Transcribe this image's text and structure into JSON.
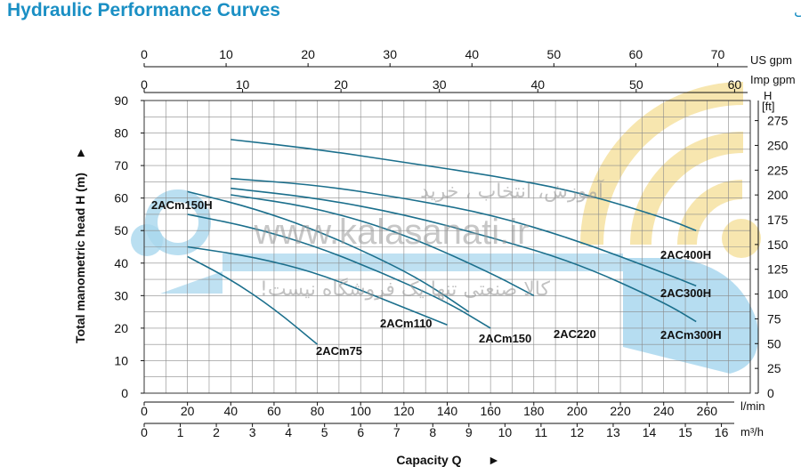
{
  "header": {
    "title_en": "Hydraulic Performance Curves",
    "title_fa": "منحنی عملکرد هیدرولیکی"
  },
  "watermark": {
    "line1": "آموزش، انتخاب ، خرید",
    "url": "www.kalasanati.ir",
    "line3": "کالا صنعتی تنها یک فروشگاه نیست!"
  },
  "colors": {
    "title": "#1a8fc4",
    "curve": "#1b6f8c",
    "watermark_blue": "#a9d7ee",
    "watermark_yellow": "#f6e3a6"
  },
  "chart_data": {
    "type": "line",
    "xlabel": "Capacity Q",
    "ylabel": "Total manometric head H (m)",
    "x_unit": "l/min",
    "xlim": [
      0,
      280
    ],
    "ylim": [
      0,
      90
    ],
    "grid": true,
    "x_ticks": [
      0,
      20,
      40,
      60,
      80,
      100,
      120,
      140,
      160,
      180,
      200,
      220,
      240,
      260
    ],
    "y_ticks": [
      0,
      10,
      20,
      30,
      40,
      50,
      60,
      70,
      80,
      90
    ],
    "secondary_axes": {
      "m3h": {
        "unit": "m³/h",
        "ticks": [
          0,
          1,
          2,
          3,
          4,
          5,
          6,
          7,
          8,
          9,
          10,
          11,
          12,
          13,
          14,
          15,
          16
        ]
      },
      "us_gpm": {
        "unit": "US gpm",
        "ticks": [
          0,
          10,
          20,
          30,
          40,
          50,
          60,
          70
        ]
      },
      "imp_gpm": {
        "unit": "Imp gpm",
        "ticks": [
          0,
          10,
          20,
          30,
          40,
          50,
          60
        ]
      },
      "feet": {
        "unit": "H [ft]",
        "ticks": [
          0,
          25,
          50,
          75,
          100,
          125,
          150,
          175,
          200,
          225,
          250,
          275
        ]
      }
    },
    "series": [
      {
        "name": "2ACm75",
        "x": [
          20,
          40,
          60,
          80
        ],
        "y": [
          42,
          35,
          26,
          15
        ]
      },
      {
        "name": "2ACm110",
        "x": [
          20,
          50,
          80,
          110,
          140
        ],
        "y": [
          45,
          42,
          37,
          29,
          21
        ]
      },
      {
        "name": "2ACm150",
        "x": [
          20,
          50,
          80,
          110,
          140,
          160
        ],
        "y": [
          55,
          51,
          45,
          37,
          28,
          20
        ]
      },
      {
        "name": "2ACm150H",
        "x": [
          20,
          50,
          80,
          110,
          130,
          150
        ],
        "y": [
          62,
          57,
          50,
          41,
          34,
          25
        ]
      },
      {
        "name": "2AC220",
        "x": [
          40,
          80,
          120,
          160,
          180
        ],
        "y": [
          61,
          57,
          49,
          37,
          30
        ]
      },
      {
        "name": "2ACm300H",
        "x": [
          40,
          80,
          120,
          160,
          200,
          240,
          255
        ],
        "y": [
          63,
          60,
          55,
          48,
          40,
          28,
          22
        ]
      },
      {
        "name": "2AC300H",
        "x": [
          40,
          80,
          120,
          160,
          200,
          240,
          255
        ],
        "y": [
          66,
          64,
          60,
          55,
          47,
          37,
          33
        ]
      },
      {
        "name": "2AC400H",
        "x": [
          40,
          80,
          120,
          160,
          200,
          240,
          255
        ],
        "y": [
          78,
          75,
          71,
          67,
          62,
          54,
          50
        ]
      }
    ]
  }
}
